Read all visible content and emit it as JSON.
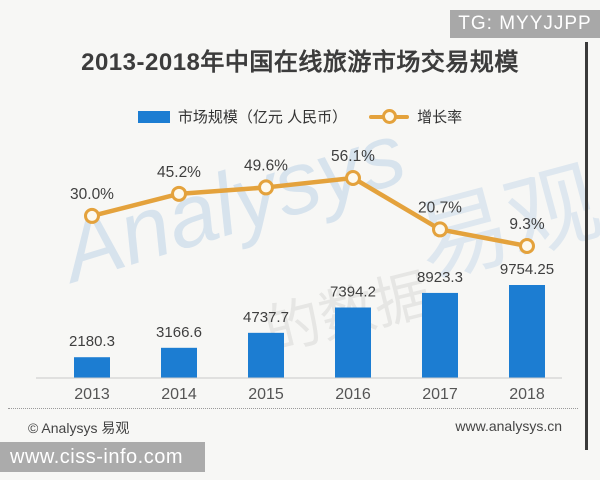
{
  "overlays": {
    "top_badge": "TG: MYYJJPP",
    "bottom_badge": "www.ciss-info.com"
  },
  "title": "2013-2018年中国在线旅游市场交易规模",
  "legend": {
    "bars": "市场规模（亿元 人民币）",
    "line": "增长率"
  },
  "watermark": {
    "text1": "Analysys",
    "text2": "易观",
    "text3": "的数据"
  },
  "footer": {
    "left": "© Analysys 易观",
    "right": "www.analysys.cn"
  },
  "colors": {
    "bar": "#1c7dd2",
    "line": "#e4a23c",
    "marker_fill": "#fdf9ee",
    "axis": "#c9c9c9",
    "value_label": "#3f3f3f",
    "year_label": "#555555",
    "badge_bg": "#a8a8a8"
  },
  "chart_data": {
    "type": "bar",
    "subtype": "bar+line combo",
    "title": "2013-2018年中国在线旅游市场交易规模",
    "categories": [
      "2013",
      "2014",
      "2015",
      "2016",
      "2017",
      "2018"
    ],
    "series": [
      {
        "name": "市场规模（亿元 人民币）",
        "type": "bar",
        "values": [
          2180.3,
          3166.6,
          4737.7,
          7394.2,
          8923.3,
          9754.25
        ],
        "labels": [
          "2180.3",
          "3166.6",
          "4737.7",
          "7394.2",
          "8923.3",
          "9754.25"
        ]
      },
      {
        "name": "增长率",
        "type": "line",
        "values": [
          30.0,
          45.2,
          49.6,
          56.1,
          20.7,
          9.3
        ],
        "labels": [
          "30.0%",
          "45.2%",
          "49.6%",
          "56.1%",
          "20.7%",
          "9.3%"
        ]
      }
    ],
    "xlabel": "",
    "ylabel": "",
    "bar_axis_range": [
      0,
      10000
    ],
    "rate_axis_range": [
      0,
      60
    ],
    "grid": false,
    "legend_position": "top",
    "data_labels": true
  }
}
